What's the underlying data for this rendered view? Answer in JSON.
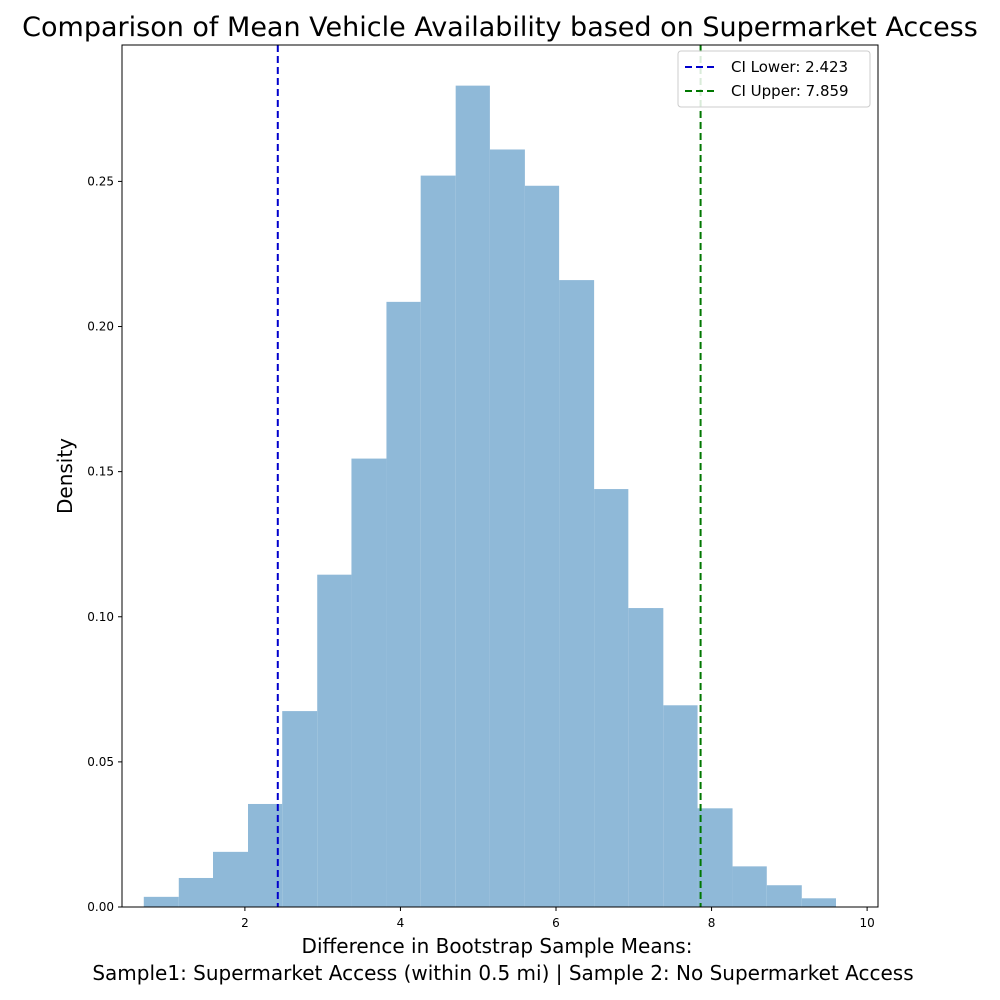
{
  "chart_data": {
    "type": "bar",
    "title": "Comparison of Mean Vehicle Availability based on Supermarket Access",
    "xlabel_line1": "Difference in Bootstrap Sample Means:",
    "xlabel_line2": "Sample1: Supermarket Access (within 0.5 mi) | Sample 2: No Supermarket Access",
    "ylabel": "Density",
    "xlim": [
      0.42,
      10.14
    ],
    "ylim": [
      0.0,
      0.297
    ],
    "xticks": [
      2,
      4,
      6,
      8,
      10
    ],
    "xtick_labels": [
      "2",
      "4",
      "6",
      "8",
      "10"
    ],
    "yticks": [
      0.0,
      0.05,
      0.1,
      0.15,
      0.2,
      0.25
    ],
    "ytick_labels": [
      "0.00",
      "0.05",
      "0.10",
      "0.15",
      "0.20",
      "0.25"
    ],
    "bar_color": "#8fb9d8",
    "bins": [
      {
        "x0": 0.7,
        "x1": 1.15,
        "density": 0.0035
      },
      {
        "x0": 1.15,
        "x1": 1.59,
        "density": 0.01
      },
      {
        "x0": 1.59,
        "x1": 2.04,
        "density": 0.019
      },
      {
        "x0": 2.04,
        "x1": 2.48,
        "density": 0.0355
      },
      {
        "x0": 2.48,
        "x1": 2.93,
        "density": 0.0675
      },
      {
        "x0": 2.93,
        "x1": 3.37,
        "density": 0.1145
      },
      {
        "x0": 3.37,
        "x1": 3.82,
        "density": 0.1545
      },
      {
        "x0": 3.82,
        "x1": 4.26,
        "density": 0.2085
      },
      {
        "x0": 4.26,
        "x1": 4.71,
        "density": 0.252
      },
      {
        "x0": 4.71,
        "x1": 5.15,
        "density": 0.283
      },
      {
        "x0": 5.15,
        "x1": 5.6,
        "density": 0.261
      },
      {
        "x0": 5.6,
        "x1": 6.04,
        "density": 0.2485
      },
      {
        "x0": 6.04,
        "x1": 6.49,
        "density": 0.216
      },
      {
        "x0": 6.49,
        "x1": 6.93,
        "density": 0.144
      },
      {
        "x0": 6.93,
        "x1": 7.38,
        "density": 0.103
      },
      {
        "x0": 7.38,
        "x1": 7.82,
        "density": 0.0695
      },
      {
        "x0": 7.82,
        "x1": 8.27,
        "density": 0.034
      },
      {
        "x0": 8.27,
        "x1": 8.71,
        "density": 0.014
      },
      {
        "x0": 8.71,
        "x1": 9.16,
        "density": 0.0075
      },
      {
        "x0": 9.16,
        "x1": 9.6,
        "density": 0.003
      }
    ],
    "ci_lines": [
      {
        "name": "CI Lower: 2.423",
        "x": 2.423,
        "color": "#0000cc"
      },
      {
        "name": "CI Upper: 7.859",
        "x": 7.859,
        "color": "#007700"
      }
    ],
    "legend_position": "top-right",
    "grid": false
  }
}
